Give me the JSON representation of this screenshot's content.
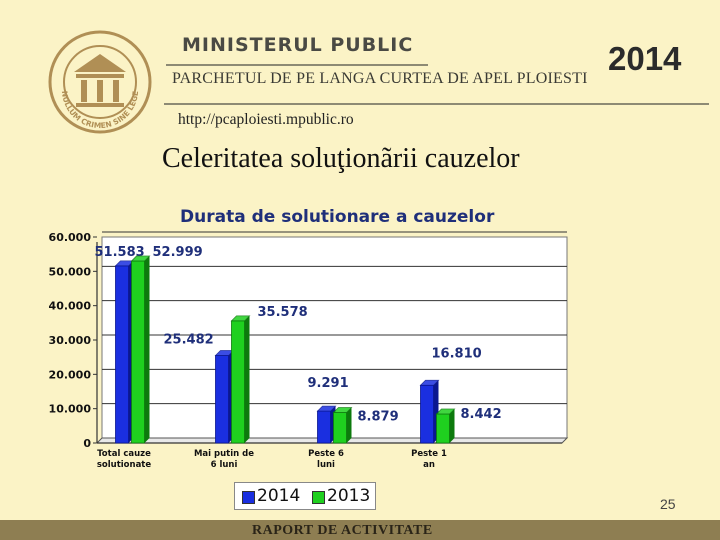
{
  "header": {
    "ministry": "MINISTERUL PUBLIC",
    "parchet": "PARCHETUL DE PE LANGA CURTEA DE APEL PLOIESTI",
    "url": "http://pcaploiesti.mpublic.ro",
    "year": "2014",
    "logo_text": "NULLUM CRIMEN SINE LEGE"
  },
  "headline": "Celeritatea soluţionãrii cauzelor",
  "page_number": "25",
  "footer": "RAPORT DE ACTIVITATE",
  "colors": {
    "series_2014": "#1a2fe0",
    "series_2013": "#1fd01f",
    "label": "#1f2f7a"
  },
  "chart_data": {
    "type": "bar",
    "title": "Durata de solutionare a cauzelor",
    "categories": [
      "Total cauze solutionate",
      "Mai putin de 6 luni",
      "Peste 6 luni",
      "Peste 1 an"
    ],
    "series": [
      {
        "name": "2014",
        "values": [
          51583,
          25482,
          9291,
          16810
        ],
        "labels": [
          "51.583",
          "25.482",
          "9.291",
          "16.810"
        ]
      },
      {
        "name": "2013",
        "values": [
          52999,
          35578,
          8879,
          8442
        ],
        "labels": [
          "52.999",
          "35.578",
          "8.879",
          "8.442"
        ]
      }
    ],
    "ylim": [
      0,
      60000
    ],
    "yticks": [
      "0",
      "10.000",
      "20.000",
      "30.000",
      "40.000",
      "50.000",
      "60.000"
    ],
    "grid": true,
    "legend": "bottom-center"
  }
}
